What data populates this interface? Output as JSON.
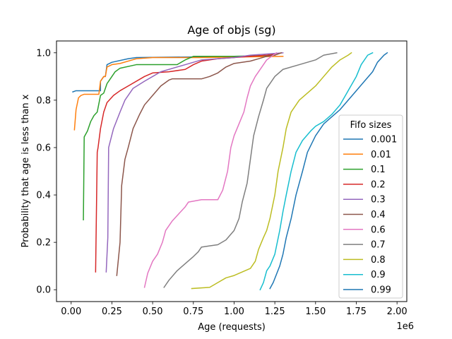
{
  "chart_data": {
    "type": "line",
    "title": "Age of objs (sg)",
    "xlabel": "Age (requests)",
    "ylabel": "Probability that age is less than x",
    "x_offset_label": "1e6",
    "xlim": [
      -0.09,
      2.06
    ],
    "ylim": [
      -0.05,
      1.05
    ],
    "xticks": [
      0.0,
      0.25,
      0.5,
      0.75,
      1.0,
      1.25,
      1.5,
      1.75,
      2.0
    ],
    "xtick_labels": [
      "0.00",
      "0.25",
      "0.50",
      "0.75",
      "1.00",
      "1.25",
      "1.50",
      "1.75",
      "2.00"
    ],
    "yticks": [
      0.0,
      0.2,
      0.4,
      0.6,
      0.8,
      1.0
    ],
    "ytick_labels": [
      "0.0",
      "0.2",
      "0.4",
      "0.6",
      "0.8",
      "1.0"
    ],
    "grid": false,
    "legend": {
      "title": "Fifo sizes",
      "placement": "lower right"
    },
    "series": [
      {
        "name": "0.001",
        "color": "#1f77b4",
        "points": [
          [
            0.01,
            0.835
          ],
          [
            0.03,
            0.84
          ],
          [
            0.18,
            0.84
          ],
          [
            0.18,
            0.88
          ],
          [
            0.2,
            0.9
          ],
          [
            0.21,
            0.9
          ],
          [
            0.22,
            0.95
          ],
          [
            0.25,
            0.96
          ],
          [
            0.35,
            0.975
          ],
          [
            0.4,
            0.98
          ],
          [
            0.8,
            0.983
          ],
          [
            1.0,
            0.985
          ],
          [
            1.2,
            0.985
          ]
        ]
      },
      {
        "name": "0.01",
        "color": "#ff7f0e",
        "points": [
          [
            0.02,
            0.675
          ],
          [
            0.03,
            0.76
          ],
          [
            0.045,
            0.81
          ],
          [
            0.06,
            0.82
          ],
          [
            0.08,
            0.825
          ],
          [
            0.17,
            0.825
          ],
          [
            0.18,
            0.88
          ],
          [
            0.2,
            0.9
          ],
          [
            0.21,
            0.9
          ],
          [
            0.22,
            0.94
          ],
          [
            0.25,
            0.95
          ],
          [
            0.3,
            0.955
          ],
          [
            0.4,
            0.975
          ],
          [
            0.5,
            0.98
          ],
          [
            0.8,
            0.98
          ],
          [
            1.0,
            0.982
          ],
          [
            1.3,
            0.985
          ]
        ]
      },
      {
        "name": "0.1",
        "color": "#2ca02c",
        "points": [
          [
            0.075,
            0.295
          ],
          [
            0.08,
            0.645
          ],
          [
            0.1,
            0.67
          ],
          [
            0.12,
            0.71
          ],
          [
            0.14,
            0.735
          ],
          [
            0.16,
            0.75
          ],
          [
            0.18,
            0.82
          ],
          [
            0.2,
            0.83
          ],
          [
            0.22,
            0.87
          ],
          [
            0.24,
            0.89
          ],
          [
            0.25,
            0.9
          ],
          [
            0.27,
            0.92
          ],
          [
            0.3,
            0.935
          ],
          [
            0.4,
            0.95
          ],
          [
            0.65,
            0.95
          ],
          [
            0.7,
            0.97
          ],
          [
            0.75,
            0.985
          ],
          [
            1.0,
            0.985
          ],
          [
            1.25,
            0.99
          ]
        ]
      },
      {
        "name": "0.2",
        "color": "#d62728",
        "points": [
          [
            0.15,
            0.075
          ],
          [
            0.16,
            0.58
          ],
          [
            0.165,
            0.6
          ],
          [
            0.18,
            0.68
          ],
          [
            0.2,
            0.75
          ],
          [
            0.22,
            0.79
          ],
          [
            0.26,
            0.82
          ],
          [
            0.3,
            0.84
          ],
          [
            0.35,
            0.86
          ],
          [
            0.45,
            0.9
          ],
          [
            0.5,
            0.915
          ],
          [
            0.6,
            0.92
          ],
          [
            0.7,
            0.93
          ],
          [
            0.75,
            0.95
          ],
          [
            0.8,
            0.965
          ],
          [
            0.9,
            0.975
          ],
          [
            1.0,
            0.98
          ],
          [
            1.1,
            0.985
          ],
          [
            1.2,
            0.99
          ],
          [
            1.25,
            0.995
          ]
        ]
      },
      {
        "name": "0.3",
        "color": "#9467bd",
        "points": [
          [
            0.215,
            0.075
          ],
          [
            0.225,
            0.22
          ],
          [
            0.23,
            0.6
          ],
          [
            0.26,
            0.68
          ],
          [
            0.3,
            0.75
          ],
          [
            0.33,
            0.8
          ],
          [
            0.38,
            0.85
          ],
          [
            0.45,
            0.88
          ],
          [
            0.5,
            0.9
          ],
          [
            0.55,
            0.92
          ],
          [
            0.6,
            0.93
          ],
          [
            0.7,
            0.95
          ],
          [
            0.75,
            0.96
          ],
          [
            0.8,
            0.97
          ],
          [
            0.9,
            0.975
          ],
          [
            1.0,
            0.98
          ],
          [
            1.1,
            0.99
          ],
          [
            1.2,
            0.995
          ],
          [
            1.3,
            1.0
          ]
        ]
      },
      {
        "name": "0.4",
        "color": "#8c564b",
        "points": [
          [
            0.28,
            0.06
          ],
          [
            0.3,
            0.2
          ],
          [
            0.31,
            0.44
          ],
          [
            0.33,
            0.55
          ],
          [
            0.35,
            0.6
          ],
          [
            0.38,
            0.68
          ],
          [
            0.42,
            0.74
          ],
          [
            0.45,
            0.78
          ],
          [
            0.5,
            0.82
          ],
          [
            0.55,
            0.86
          ],
          [
            0.6,
            0.885
          ],
          [
            0.62,
            0.89
          ],
          [
            0.8,
            0.89
          ],
          [
            0.85,
            0.9
          ],
          [
            0.9,
            0.915
          ],
          [
            0.95,
            0.94
          ],
          [
            1.0,
            0.955
          ],
          [
            1.1,
            0.965
          ],
          [
            1.15,
            0.975
          ],
          [
            1.2,
            0.985
          ],
          [
            1.25,
            0.99
          ],
          [
            1.29,
            1.0
          ]
        ]
      },
      {
        "name": "0.6",
        "color": "#e377c2",
        "points": [
          [
            0.45,
            0.01
          ],
          [
            0.47,
            0.07
          ],
          [
            0.5,
            0.12
          ],
          [
            0.53,
            0.15
          ],
          [
            0.56,
            0.2
          ],
          [
            0.58,
            0.25
          ],
          [
            0.62,
            0.29
          ],
          [
            0.66,
            0.32
          ],
          [
            0.7,
            0.35
          ],
          [
            0.72,
            0.37
          ],
          [
            0.8,
            0.38
          ],
          [
            0.9,
            0.38
          ],
          [
            0.93,
            0.42
          ],
          [
            0.96,
            0.5
          ],
          [
            0.98,
            0.6
          ],
          [
            1.0,
            0.65
          ],
          [
            1.03,
            0.7
          ],
          [
            1.06,
            0.75
          ],
          [
            1.08,
            0.81
          ],
          [
            1.1,
            0.86
          ],
          [
            1.13,
            0.9
          ],
          [
            1.17,
            0.94
          ],
          [
            1.2,
            0.97
          ],
          [
            1.26,
            1.0
          ]
        ]
      },
      {
        "name": "0.7",
        "color": "#7f7f7f",
        "points": [
          [
            0.57,
            0.01
          ],
          [
            0.6,
            0.04
          ],
          [
            0.65,
            0.08
          ],
          [
            0.7,
            0.11
          ],
          [
            0.75,
            0.14
          ],
          [
            0.78,
            0.16
          ],
          [
            0.8,
            0.18
          ],
          [
            0.85,
            0.185
          ],
          [
            0.9,
            0.19
          ],
          [
            0.95,
            0.21
          ],
          [
            1.0,
            0.25
          ],
          [
            1.03,
            0.3
          ],
          [
            1.05,
            0.37
          ],
          [
            1.08,
            0.45
          ],
          [
            1.1,
            0.55
          ],
          [
            1.12,
            0.65
          ],
          [
            1.15,
            0.73
          ],
          [
            1.18,
            0.8
          ],
          [
            1.2,
            0.85
          ],
          [
            1.25,
            0.9
          ],
          [
            1.3,
            0.93
          ],
          [
            1.4,
            0.95
          ],
          [
            1.45,
            0.96
          ],
          [
            1.5,
            0.97
          ],
          [
            1.55,
            0.99
          ],
          [
            1.63,
            1.0
          ]
        ]
      },
      {
        "name": "0.8",
        "color": "#bcbd22",
        "points": [
          [
            0.74,
            0.005
          ],
          [
            0.85,
            0.01
          ],
          [
            0.9,
            0.03
          ],
          [
            0.95,
            0.05
          ],
          [
            1.0,
            0.06
          ],
          [
            1.05,
            0.075
          ],
          [
            1.1,
            0.09
          ],
          [
            1.13,
            0.12
          ],
          [
            1.15,
            0.17
          ],
          [
            1.18,
            0.22
          ],
          [
            1.2,
            0.25
          ],
          [
            1.22,
            0.3
          ],
          [
            1.25,
            0.4
          ],
          [
            1.27,
            0.5
          ],
          [
            1.3,
            0.6
          ],
          [
            1.32,
            0.68
          ],
          [
            1.35,
            0.75
          ],
          [
            1.4,
            0.8
          ],
          [
            1.45,
            0.83
          ],
          [
            1.5,
            0.86
          ],
          [
            1.55,
            0.9
          ],
          [
            1.6,
            0.94
          ],
          [
            1.65,
            0.97
          ],
          [
            1.7,
            0.99
          ],
          [
            1.72,
            1.0
          ]
        ]
      },
      {
        "name": "0.9",
        "color": "#17becf",
        "points": [
          [
            1.16,
            0.0
          ],
          [
            1.18,
            0.03
          ],
          [
            1.2,
            0.08
          ],
          [
            1.22,
            0.1
          ],
          [
            1.25,
            0.15
          ],
          [
            1.28,
            0.25
          ],
          [
            1.3,
            0.33
          ],
          [
            1.32,
            0.4
          ],
          [
            1.35,
            0.5
          ],
          [
            1.38,
            0.58
          ],
          [
            1.42,
            0.63
          ],
          [
            1.47,
            0.67
          ],
          [
            1.5,
            0.69
          ],
          [
            1.55,
            0.71
          ],
          [
            1.6,
            0.74
          ],
          [
            1.65,
            0.78
          ],
          [
            1.7,
            0.84
          ],
          [
            1.75,
            0.9
          ],
          [
            1.78,
            0.95
          ],
          [
            1.82,
            0.99
          ],
          [
            1.85,
            1.0
          ]
        ]
      },
      {
        "name": "0.99",
        "color": "#1f77b4",
        "points": [
          [
            1.22,
            0.005
          ],
          [
            1.24,
            0.03
          ],
          [
            1.28,
            0.1
          ],
          [
            1.3,
            0.15
          ],
          [
            1.32,
            0.22
          ],
          [
            1.35,
            0.3
          ],
          [
            1.38,
            0.4
          ],
          [
            1.42,
            0.5
          ],
          [
            1.45,
            0.58
          ],
          [
            1.5,
            0.65
          ],
          [
            1.55,
            0.7
          ],
          [
            1.6,
            0.73
          ],
          [
            1.65,
            0.76
          ],
          [
            1.7,
            0.8
          ],
          [
            1.75,
            0.84
          ],
          [
            1.8,
            0.88
          ],
          [
            1.85,
            0.92
          ],
          [
            1.88,
            0.96
          ],
          [
            1.92,
            0.99
          ],
          [
            1.94,
            1.0
          ]
        ]
      }
    ]
  }
}
